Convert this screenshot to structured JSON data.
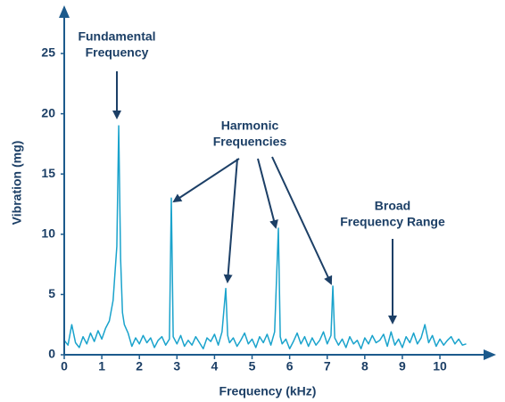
{
  "chart_data": {
    "type": "line",
    "xlabel": "Frequency (kHz)",
    "ylabel": "Vibration (mg)",
    "xlim": [
      0,
      11.4
    ],
    "ylim": [
      0,
      28.7
    ],
    "xticks": [
      0,
      1,
      2,
      3,
      4,
      5,
      6,
      7,
      8,
      9,
      10
    ],
    "yticks": [
      0,
      5,
      10,
      15,
      20,
      25
    ],
    "color": "#1aa3cc",
    "annotations": [
      {
        "lines": [
          "Fundamental",
          "Frequency"
        ]
      },
      {
        "lines": [
          "Harmonic",
          "Frequencies"
        ]
      },
      {
        "lines": [
          "Broad",
          "Frequency Range"
        ]
      }
    ],
    "x": [
      0.0,
      0.1,
      0.2,
      0.3,
      0.4,
      0.5,
      0.6,
      0.7,
      0.8,
      0.9,
      1.0,
      1.1,
      1.2,
      1.3,
      1.4,
      1.45,
      1.5,
      1.55,
      1.6,
      1.7,
      1.8,
      1.9,
      2.0,
      2.1,
      2.2,
      2.3,
      2.4,
      2.5,
      2.6,
      2.7,
      2.8,
      2.85,
      2.9,
      3.0,
      3.1,
      3.2,
      3.3,
      3.4,
      3.5,
      3.6,
      3.7,
      3.8,
      3.9,
      4.0,
      4.1,
      4.2,
      4.3,
      4.35,
      4.4,
      4.5,
      4.6,
      4.7,
      4.8,
      4.9,
      5.0,
      5.1,
      5.2,
      5.3,
      5.4,
      5.5,
      5.6,
      5.7,
      5.75,
      5.8,
      5.9,
      6.0,
      6.1,
      6.2,
      6.3,
      6.4,
      6.5,
      6.6,
      6.7,
      6.8,
      6.9,
      7.0,
      7.1,
      7.15,
      7.2,
      7.3,
      7.4,
      7.5,
      7.6,
      7.7,
      7.8,
      7.9,
      8.0,
      8.1,
      8.2,
      8.3,
      8.4,
      8.5,
      8.6,
      8.7,
      8.8,
      8.9,
      9.0,
      9.1,
      9.2,
      9.3,
      9.4,
      9.5,
      9.6,
      9.7,
      9.8,
      9.9,
      10.0,
      10.1,
      10.2,
      10.3,
      10.4,
      10.5,
      10.6,
      10.7
    ],
    "values": [
      1.2,
      0.8,
      2.5,
      1.0,
      0.6,
      1.5,
      0.9,
      1.8,
      1.1,
      2.0,
      1.3,
      2.2,
      2.8,
      4.5,
      9.0,
      19.0,
      8.0,
      3.5,
      2.5,
      1.8,
      0.7,
      1.4,
      0.9,
      1.6,
      1.0,
      1.4,
      0.6,
      1.2,
      1.5,
      0.8,
      1.3,
      13.0,
      1.5,
      0.9,
      1.6,
      0.7,
      1.2,
      0.8,
      1.5,
      1.0,
      0.5,
      1.4,
      1.1,
      1.7,
      0.8,
      1.9,
      5.5,
      1.6,
      1.0,
      1.4,
      0.7,
      1.2,
      1.8,
      0.9,
      1.3,
      0.6,
      1.5,
      1.0,
      1.7,
      0.8,
      1.9,
      10.5,
      1.5,
      0.9,
      1.3,
      0.5,
      1.1,
      1.8,
      0.9,
      1.5,
      0.7,
      1.4,
      0.8,
      1.2,
      1.9,
      0.9,
      1.6,
      5.7,
      1.4,
      0.8,
      1.3,
      0.6,
      1.5,
      0.9,
      1.2,
      0.5,
      1.4,
      0.9,
      1.6,
      1.0,
      1.2,
      1.7,
      0.7,
      1.9,
      0.8,
      1.3,
      0.6,
      1.5,
      1.0,
      1.8,
      0.9,
      1.4,
      2.5,
      1.0,
      1.6,
      0.7,
      1.3,
      0.8,
      1.2,
      1.5,
      0.9,
      1.3,
      0.8,
      0.9
    ]
  }
}
